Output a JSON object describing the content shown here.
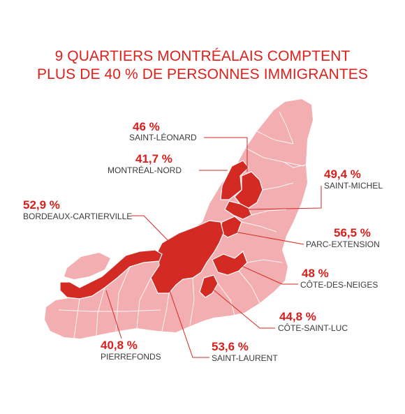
{
  "title": {
    "line1": "9 QUARTIERS MONTRÉALAIS COMPTENT",
    "line2": "PLUS DE 40 % DE PERSONNES IMMIGRANTES"
  },
  "colors": {
    "title": "#e0201b",
    "highlight": "#d42a24",
    "base": "#f2aeb1",
    "borders": "#ffffff",
    "percent_text": "#d71f1c",
    "name_text": "#3a3a3a"
  },
  "districts": [
    {
      "name": "SAINT-LÉONARD",
      "percent": "46 %"
    },
    {
      "name": "MONTRÉAL-NORD",
      "percent": "41,7 %"
    },
    {
      "name": "SAINT-MICHEL",
      "percent": "49,4 %"
    },
    {
      "name": "BORDEAUX-CARTIERVILLE",
      "percent": "52,9 %"
    },
    {
      "name": "PARC-EXTENSION",
      "percent": "56,5 %"
    },
    {
      "name": "CÔTE-DES-NEIGES",
      "percent": "48 %"
    },
    {
      "name": "CÔTE-SAINT-LUC",
      "percent": "44,8 %"
    },
    {
      "name": "PIERREFONDS",
      "percent": "40,8 %"
    },
    {
      "name": "SAINT-LAURENT",
      "percent": "53,6 %"
    }
  ]
}
